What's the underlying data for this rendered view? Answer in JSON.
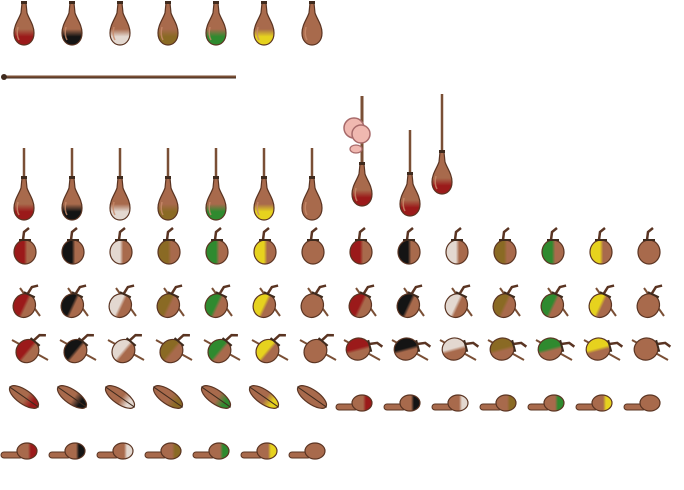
{
  "sheet": {
    "colors": {
      "background": "#ffffff",
      "wood": "#a86a4c",
      "wood_dark": "#5a3422",
      "wood_light": "#c98c6c",
      "stick": "#7a4f35",
      "stick_dark": "#3f2a1d",
      "skin": "#f0b8b0",
      "skin_dark": "#a86a6a"
    },
    "tints": [
      {
        "name": "red",
        "color": "#9b1a1a"
      },
      {
        "name": "black",
        "color": "#141414"
      },
      {
        "name": "silver",
        "color": "#e3d8d0"
      },
      {
        "name": "olive",
        "color": "#8a6a24"
      },
      {
        "name": "green",
        "color": "#2f8a2f"
      },
      {
        "name": "yellow",
        "color": "#e6d21e"
      },
      {
        "name": "plain",
        "color": "#a86a4c"
      }
    ],
    "sprites": [
      "gourd-hanging",
      "staff-long",
      "staff-long-fade",
      "carrier-figure",
      "gourd-on-stick",
      "gourd-tied",
      "gourd-tilted",
      "gourd-sideways",
      "gourd-lying-diag",
      "gourd-lying-flat"
    ]
  }
}
